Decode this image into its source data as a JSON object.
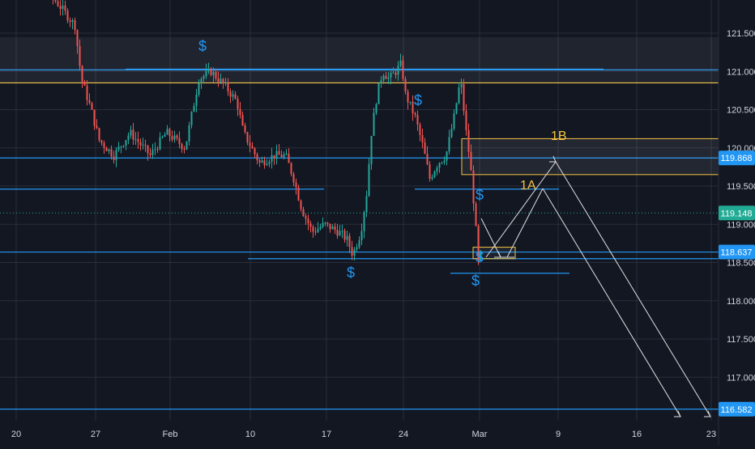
{
  "colors": {
    "background": "#131722",
    "grid": "#2a2e39",
    "axis_text": "#d1d4dc",
    "up": "#26a69a",
    "down": "#ef5350",
    "blue_line": "#2196f3",
    "orange": "#f5c542",
    "arrow": "#e0e0e0",
    "price_tag": "#2196f3",
    "current_tag": "#22ab94"
  },
  "chart_data": {
    "type": "candlestick",
    "instrument_price_scale": "right",
    "ylim": [
      116.5,
      122.0
    ],
    "y_ticks": [
      "121.500",
      "121.000",
      "120.500",
      "120.000",
      "119.500",
      "119.000",
      "118.500",
      "118.000",
      "117.500",
      "117.000"
    ],
    "x_ticks": [
      "20",
      "27",
      "Feb",
      "10",
      "17",
      "24",
      "Mar",
      "9",
      "16",
      "23"
    ],
    "price_tags": [
      {
        "label": "119.868",
        "value": 119.868,
        "kind": "level"
      },
      {
        "label": "119.148",
        "value": 119.148,
        "kind": "current"
      },
      {
        "label": "118.637",
        "value": 118.637,
        "kind": "level"
      },
      {
        "label": "116.582",
        "value": 116.582,
        "kind": "level"
      }
    ],
    "horizontal_levels": [
      120.95,
      121.02,
      119.868,
      119.46,
      118.637,
      118.53
    ],
    "zones": [
      {
        "label": "1B",
        "from": 119.65,
        "to": 120.12
      },
      {
        "label": "1A",
        "from": 118.5,
        "to": 118.64
      }
    ],
    "annotations": [
      {
        "text": "$",
        "kind": "marker"
      },
      {
        "text": "1B",
        "kind": "zone-label"
      },
      {
        "text": "1A",
        "kind": "zone-label"
      }
    ]
  }
}
